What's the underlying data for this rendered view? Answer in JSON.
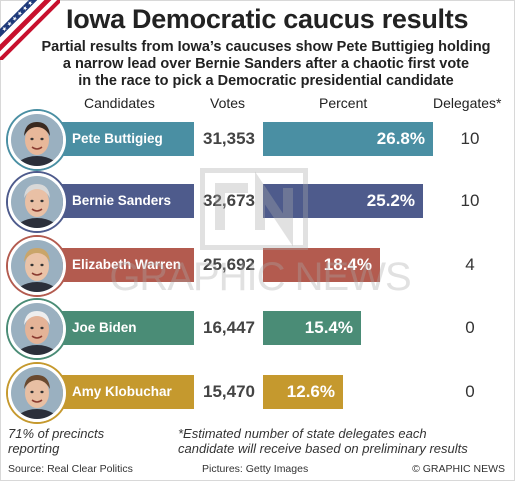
{
  "title": "Iowa Democratic caucus results",
  "subtitle_lines": [
    "Partial results from Iowa’s caucuses show Pete Buttigieg holding",
    "a narrow lead over Bernie Sanders after a chaotic first vote",
    "in the race to pick a Democratic presidential candidate"
  ],
  "headers": {
    "candidates": "Candidates",
    "votes": "Votes",
    "percent": "Percent",
    "delegates": "Delegates*"
  },
  "watermark": "GRAPHIC NEWS",
  "notes": {
    "precincts_line1": "71% of precincts",
    "precincts_line2": "reporting",
    "delegates_line1": "*Estimated number of state delegates each",
    "delegates_line2": "candidate will receive based on preliminary results"
  },
  "footer": {
    "source": "Source: Real Clear Politics",
    "pictures": "Pictures: Getty Images",
    "copyright": "© GRAPHIC NEWS"
  },
  "colors": {
    "buttigieg": "#4a8fa3",
    "sanders": "#4e5b8c",
    "warren": "#b35b4f",
    "biden": "#4a8c76",
    "klobuchar": "#c5992e"
  },
  "chart_data": {
    "type": "bar",
    "orientation": "horizontal",
    "categories": [
      "Pete Buttigieg",
      "Bernie Sanders",
      "Elizabeth Warren",
      "Joe Biden",
      "Amy Klobuchar"
    ],
    "votes": [
      31353,
      32673,
      25692,
      16447,
      15470
    ],
    "votes_labels": [
      "31,353",
      "32,673",
      "25,692",
      "16,447",
      "15,470"
    ],
    "percent": [
      26.8,
      25.2,
      18.4,
      15.4,
      12.6
    ],
    "percent_labels": [
      "26.8%",
      "25.2%",
      "18.4%",
      "15.4%",
      "12.6%"
    ],
    "delegates": [
      10,
      10,
      4,
      0,
      0
    ],
    "delegates_labels": [
      "10",
      "10",
      "4",
      "0",
      "0"
    ],
    "series_colors": [
      "#4a8fa3",
      "#4e5b8c",
      "#b35b4f",
      "#4a8c76",
      "#c5992e"
    ],
    "xlim": [
      0,
      30
    ]
  }
}
